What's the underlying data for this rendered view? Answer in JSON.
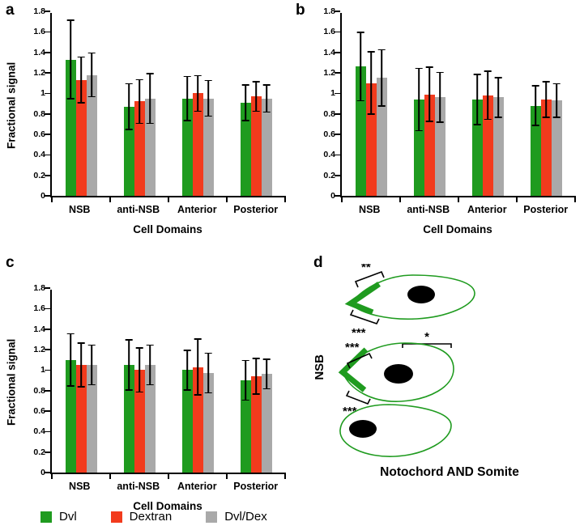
{
  "panels": {
    "a": {
      "letter": "a"
    },
    "b": {
      "letter": "b"
    },
    "c": {
      "letter": "c"
    },
    "d": {
      "letter": "d"
    }
  },
  "colors": {
    "dvl_green": "#1f9b1f",
    "dextran_red": "#f23b1d",
    "dvldex_gray": "#a9a9a9",
    "axis_black": "#000000",
    "cell_outline": "#1f9b1f",
    "nucleus": "#000000"
  },
  "legend": {
    "items": [
      {
        "label": "Dvl",
        "color": "#1f9b1f"
      },
      {
        "label": "Dextran",
        "color": "#f23b1d"
      },
      {
        "label": "Dvl/Dex",
        "color": "#a9a9a9"
      }
    ]
  },
  "chart_data": [
    {
      "type": "bar",
      "panel": "a",
      "categories": [
        "NSB",
        "anti-NSB",
        "Anterior",
        "Posterior"
      ],
      "series": [
        {
          "name": "Dvl",
          "color": "#1f9b1f",
          "values": [
            1.33,
            0.87,
            0.95,
            0.91
          ],
          "errors": [
            0.39,
            0.23,
            0.22,
            0.18
          ]
        },
        {
          "name": "Dextran",
          "color": "#f23b1d",
          "values": [
            1.13,
            0.92,
            1.0,
            0.97
          ],
          "errors": [
            0.23,
            0.22,
            0.18,
            0.15
          ]
        },
        {
          "name": "Dvl/Dex",
          "color": "#a9a9a9",
          "values": [
            1.18,
            0.95,
            0.95,
            0.95
          ],
          "errors": [
            0.22,
            0.25,
            0.18,
            0.14
          ]
        }
      ],
      "title": "",
      "xlabel": "Cell Domains",
      "ylabel": "Fractional signal",
      "ylim": [
        0,
        1.8
      ],
      "yticks": [
        0,
        0.2,
        0.4,
        0.6,
        0.8,
        1,
        1.2,
        1.4,
        1.6,
        1.8
      ],
      "grid": false,
      "legend_position": "bottom"
    },
    {
      "type": "bar",
      "panel": "b",
      "categories": [
        "NSB",
        "anti-NSB",
        "Anterior",
        "Posterior"
      ],
      "series": [
        {
          "name": "Dvl",
          "color": "#1f9b1f",
          "values": [
            1.26,
            0.94,
            0.94,
            0.88
          ],
          "errors": [
            0.34,
            0.31,
            0.25,
            0.2
          ]
        },
        {
          "name": "Dextran",
          "color": "#f23b1d",
          "values": [
            1.1,
            0.99,
            0.98,
            0.94
          ],
          "errors": [
            0.31,
            0.27,
            0.24,
            0.18
          ]
        },
        {
          "name": "Dvl/Dex",
          "color": "#a9a9a9",
          "values": [
            1.15,
            0.96,
            0.96,
            0.93
          ],
          "errors": [
            0.28,
            0.25,
            0.2,
            0.17
          ]
        }
      ],
      "title": "",
      "xlabel": "Cell Domains",
      "ylabel": "",
      "ylim": [
        0,
        1.8
      ],
      "yticks": [
        0,
        0.2,
        0.4,
        0.6,
        0.8,
        1,
        1.2,
        1.4,
        1.6,
        1.8
      ],
      "grid": false,
      "legend_position": "bottom"
    },
    {
      "type": "bar",
      "panel": "c",
      "categories": [
        "NSB",
        "anti-NSB",
        "Anterior",
        "Posterior"
      ],
      "series": [
        {
          "name": "Dvl",
          "color": "#1f9b1f",
          "values": [
            1.1,
            1.05,
            1.0,
            0.9
          ],
          "errors": [
            0.26,
            0.25,
            0.2,
            0.2
          ]
        },
        {
          "name": "Dextran",
          "color": "#f23b1d",
          "values": [
            1.05,
            1.0,
            1.03,
            0.94
          ],
          "errors": [
            0.22,
            0.22,
            0.28,
            0.18
          ]
        },
        {
          "name": "Dvl/Dex",
          "color": "#a9a9a9",
          "values": [
            1.05,
            1.05,
            0.97,
            0.96
          ],
          "errors": [
            0.2,
            0.2,
            0.2,
            0.15
          ]
        }
      ],
      "title": "",
      "xlabel": "Cell Domains",
      "ylabel": "Fractional signal",
      "ylim": [
        0,
        1.8
      ],
      "yticks": [
        0,
        0.2,
        0.4,
        0.6,
        0.8,
        1,
        1.2,
        1.4,
        1.6,
        1.8
      ],
      "grid": false,
      "legend_position": "bottom"
    }
  ],
  "diagram": {
    "nsb_label": "NSB",
    "caption": "Notochord AND Somite",
    "annotations": {
      "top_cell_upper": "**",
      "top_cell_lower": "***",
      "between_cells": "*",
      "mid_cell_upper": "***",
      "mid_cell_lower": "***"
    }
  }
}
